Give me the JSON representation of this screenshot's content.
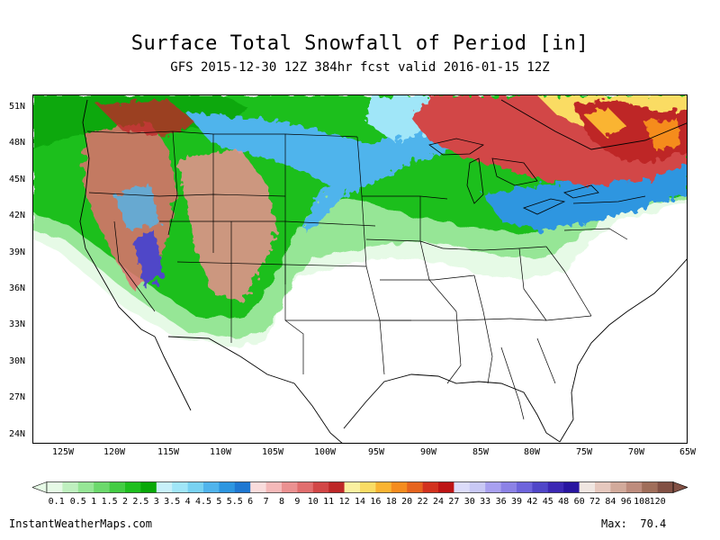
{
  "title": "Surface Total Snowfall of Period [in]",
  "subtitle": "GFS 2015-12-30 12Z 384hr fcst valid 2016-01-15 12Z",
  "lat_labels": [
    "51N",
    "48N",
    "45N",
    "42N",
    "39N",
    "36N",
    "33N",
    "30N",
    "27N",
    "24N"
  ],
  "lon_labels": [
    "125W",
    "120W",
    "115W",
    "110W",
    "105W",
    "100W",
    "95W",
    "90W",
    "85W",
    "80W",
    "75W",
    "70W",
    "65W"
  ],
  "colorbar": {
    "labels": [
      "0.1",
      "0.5",
      "1",
      "1.5",
      "2",
      "2.5",
      "3",
      "3.5",
      "4",
      "4.5",
      "5",
      "5.5",
      "6",
      "7",
      "8",
      "9",
      "10",
      "11",
      "12",
      "14",
      "16",
      "18",
      "20",
      "22",
      "24",
      "27",
      "30",
      "33",
      "36",
      "39",
      "42",
      "45",
      "48",
      "60",
      "72",
      "84",
      "96",
      "108",
      "120"
    ],
    "colors": [
      "#e6fae6",
      "#bff0bf",
      "#96e696",
      "#6cd96c",
      "#43cc43",
      "#1ebf1e",
      "#08a808",
      "#c8f0fa",
      "#a0e6f8",
      "#78d2f2",
      "#50b4ec",
      "#2d96e0",
      "#1e78d2",
      "#fadcdc",
      "#f5b9b9",
      "#eb9191",
      "#e16e6e",
      "#d24646",
      "#be2828",
      "#faf0a0",
      "#fadc64",
      "#fab432",
      "#f58c1e",
      "#e6641e",
      "#d2321e",
      "#be1414",
      "#dcdcfa",
      "#c8c8f5",
      "#a8a0f0",
      "#8c82e6",
      "#6e64dc",
      "#5046c8",
      "#3c28b4",
      "#2814a0",
      "#f0e6e1",
      "#e6c8be",
      "#d2aa9b",
      "#be8c7d",
      "#a06e5a",
      "#825044"
    ]
  },
  "source": "InstantWeatherMaps.com",
  "max_label": "Max:",
  "max_value": "70.4"
}
